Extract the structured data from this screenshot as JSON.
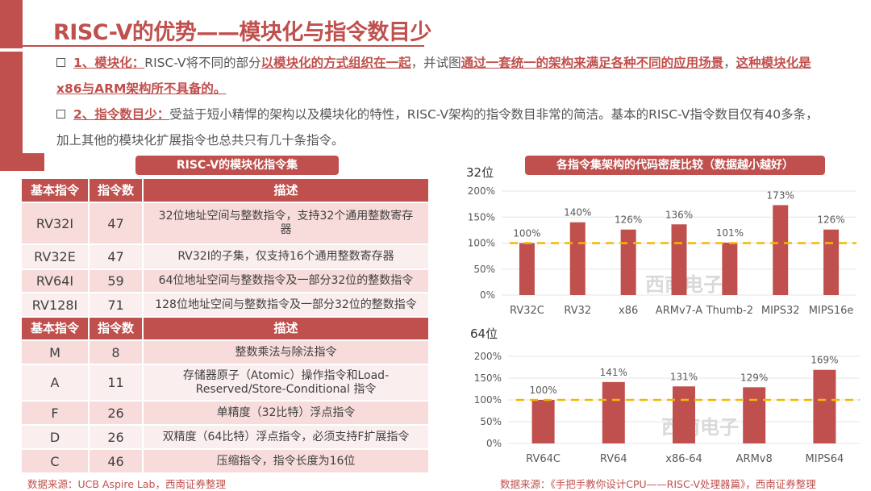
{
  "title": "RISC-V的优势——模块化与指令数目少",
  "bullets": [
    {
      "label": "1、模块化：",
      "parts": [
        "RISC-V将不同的部分",
        "以模块化的方式组织在一起",
        "，并试图",
        "通过一套统一的架构来满足各种不同的应用场景",
        "，",
        "这种模块化是x86与ARM架构所不具备的。"
      ]
    },
    {
      "label": "2、指令数目少：",
      "text": "受益于短小精悍的架构以及模块化的特性，RISC-V架构的指令数目非常的简洁。基本的RISC-V指令数目仅有40多条，加上其他的模块化扩展指令也总共只有几十条指令。"
    }
  ],
  "table": {
    "title": "RISC-V的模块化指令集",
    "headers": [
      "基本指令",
      "指令数",
      "描述"
    ],
    "rows1": [
      [
        "RV32I",
        "47",
        "32位地址空间与整数指令，支持32个通用整数寄存器"
      ],
      [
        "RV32E",
        "47",
        "RV32I的子集，仅支持16个通用整数寄存器"
      ],
      [
        "RV64I",
        "59",
        "64位地址空间与整数指令及一部分32位的整数指令"
      ],
      [
        "RV128I",
        "71",
        "128位地址空间与整数指令及一部分32位的整数指令"
      ]
    ],
    "rows2": [
      [
        "M",
        "8",
        "整数乘法与除法指令"
      ],
      [
        "A",
        "11",
        "存储器原子（Atomic）操作指令和Load-Reserved/Store-Conditional 指令"
      ],
      [
        "F",
        "26",
        "单精度（32比特）浮点指令"
      ],
      [
        "D",
        "26",
        "双精度（64比特）浮点指令，必须支持F扩展指令"
      ],
      [
        "C",
        "46",
        "压缩指令，指令长度为16位"
      ]
    ],
    "source": "数据来源：UCB Aspire Lab，西南证券整理"
  },
  "watermark": "西南电子",
  "chart_title": "各指令集架构的代码密度比较（数据越小越好）",
  "chart_source": "数据来源：《手把手教你设计CPU——RISC-V处理器篇》，西南证券整理",
  "chart_data": [
    {
      "type": "bar",
      "title": "32位",
      "categories": [
        "RV32C",
        "RV32",
        "x86",
        "ARMv7-A",
        "Thumb-2",
        "MIPS32",
        "MIPS16e"
      ],
      "values": [
        100,
        140,
        126,
        136,
        101,
        173,
        126
      ],
      "data_labels": [
        "100%",
        "140%",
        "126%",
        "136%",
        "101%",
        "173%",
        "126%"
      ],
      "ylim": [
        0,
        200
      ],
      "yticks": [
        "0%",
        "50%",
        "100%",
        "150%",
        "200%"
      ],
      "reference_line": 100,
      "bar_color": "#c0504d",
      "reference_color": "#f5b800",
      "grid": true
    },
    {
      "type": "bar",
      "title": "64位",
      "categories": [
        "RV64C",
        "RV64",
        "x86-64",
        "ARMv8",
        "MIPS64"
      ],
      "values": [
        100,
        141,
        131,
        129,
        169
      ],
      "data_labels": [
        "100%",
        "141%",
        "131%",
        "129%",
        "169%"
      ],
      "ylim": [
        0,
        200
      ],
      "yticks": [
        "0%",
        "50%",
        "100%",
        "150%",
        "200%"
      ],
      "reference_line": 100,
      "bar_color": "#c0504d",
      "reference_color": "#f5b800",
      "grid": true
    }
  ]
}
